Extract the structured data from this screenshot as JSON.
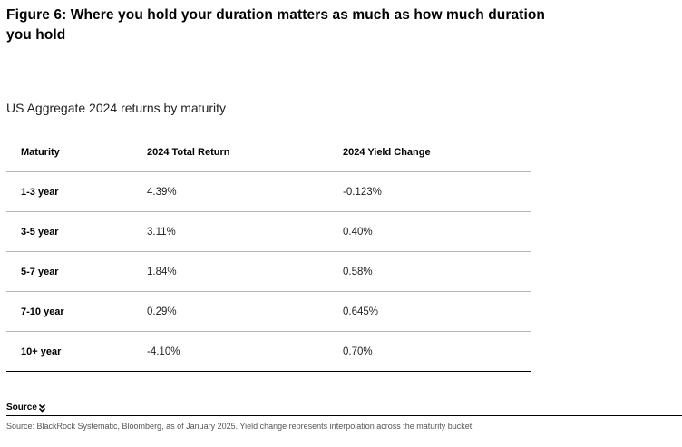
{
  "figure": {
    "title": "Figure 6: Where you hold your duration matters as much as how much duration you hold",
    "subtitle": "US Aggregate 2024 returns by maturity"
  },
  "table": {
    "headers": [
      "Maturity",
      "2024 Total Return",
      "2024 Yield Change"
    ],
    "rows": [
      {
        "maturity": "1-3 year",
        "total_return": "4.39%",
        "yield_change": "-0.123%"
      },
      {
        "maturity": "3-5 year",
        "total_return": "3.11%",
        "yield_change": "0.40%"
      },
      {
        "maturity": "5-7 year",
        "total_return": "1.84%",
        "yield_change": "0.58%"
      },
      {
        "maturity": "7-10 year",
        "total_return": "0.29%",
        "yield_change": "0.645%"
      },
      {
        "maturity": "10+ year",
        "total_return": "-4.10%",
        "yield_change": "0.70%"
      }
    ]
  },
  "source": {
    "toggle_label": "Source",
    "toggle_icon": "double-chevron-down-icon",
    "text": "Source: BlackRock Systematic, Bloomberg, as of January 2025. Yield change represents interpolation across the maturity bucket."
  }
}
